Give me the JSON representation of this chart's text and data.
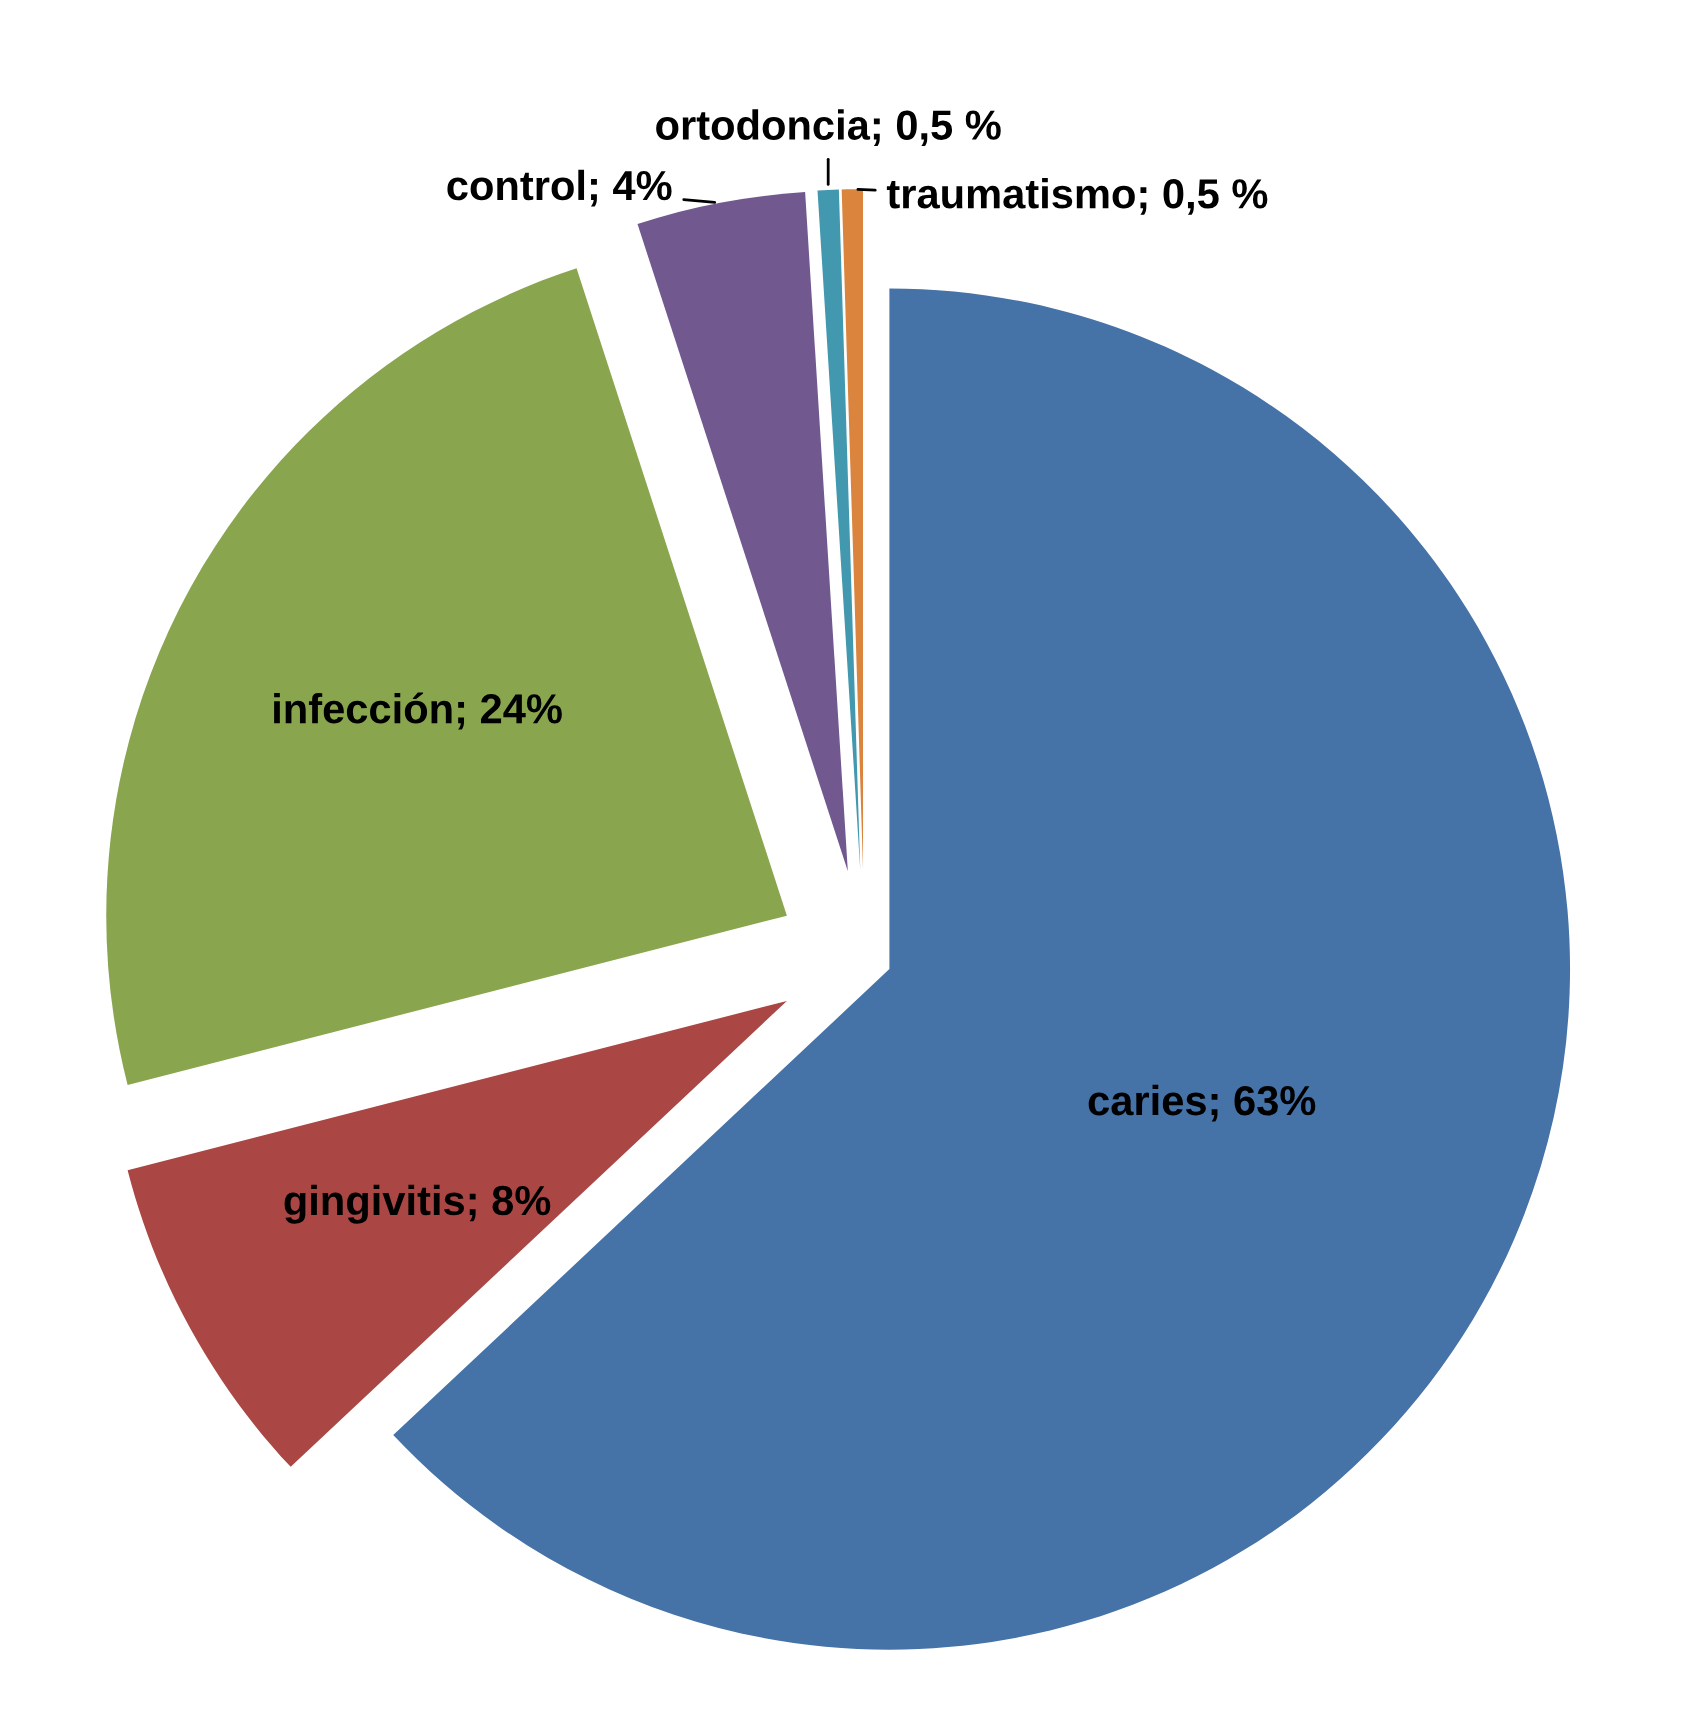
{
  "chart_data": {
    "type": "pie",
    "categories": [
      "caries",
      "gingivitis",
      "infección",
      "control",
      "ortodoncia",
      "traumatismo"
    ],
    "values": [
      63,
      8,
      24,
      4,
      0.5,
      0.5
    ],
    "colors": [
      "#4572a7",
      "#aa4643",
      "#89a54e",
      "#71588f",
      "#4198af",
      "#db843d"
    ],
    "value_labels": [
      "63%",
      "8%",
      "24%",
      "4%",
      "0,5 %",
      "0,5 %"
    ],
    "legend": false
  }
}
